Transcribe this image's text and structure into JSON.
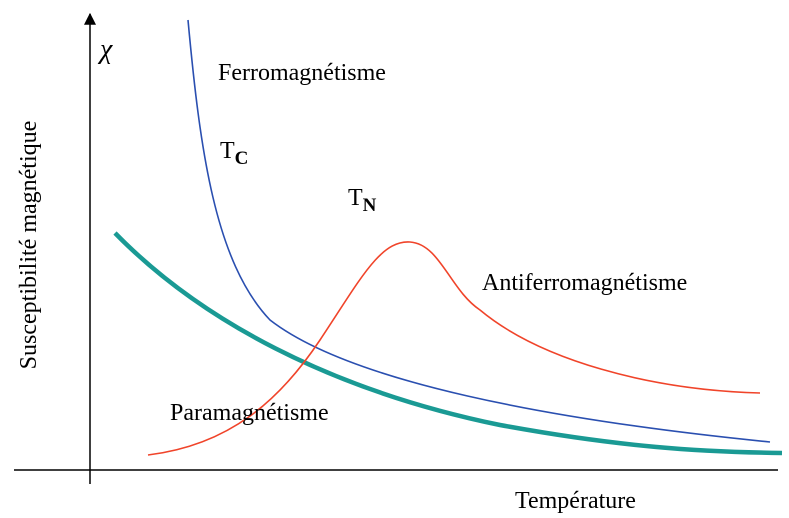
{
  "axes": {
    "y_symbol": "χ",
    "y_label": "Susceptibilité magnétique",
    "x_label": "Température"
  },
  "curves": [
    {
      "label": "Ferromagnétisme"
    },
    {
      "label": "Antiferromagnétisme"
    },
    {
      "label": "Paramagnétisme"
    }
  ],
  "points": [
    {
      "symbol": "T",
      "subscript": "C"
    },
    {
      "symbol": "T",
      "subscript": "N"
    }
  ]
}
